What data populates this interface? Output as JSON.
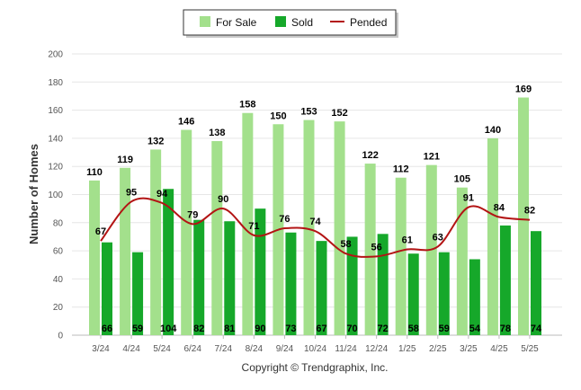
{
  "chart_data": {
    "type": "bar",
    "categories": [
      "3/24",
      "4/24",
      "5/24",
      "6/24",
      "7/24",
      "8/24",
      "9/24",
      "10/24",
      "11/24",
      "12/24",
      "1/25",
      "2/25",
      "3/25",
      "4/25",
      "5/25"
    ],
    "series": [
      {
        "name": "For Sale",
        "type": "bar",
        "color": "#a3e08c",
        "values": [
          110,
          119,
          132,
          146,
          138,
          158,
          150,
          153,
          152,
          122,
          112,
          121,
          105,
          140,
          169
        ]
      },
      {
        "name": "Sold",
        "type": "bar",
        "color": "#16a82a",
        "values": [
          66,
          59,
          104,
          82,
          81,
          90,
          73,
          67,
          70,
          72,
          58,
          59,
          54,
          78,
          74
        ]
      },
      {
        "name": "Pended",
        "type": "line",
        "color": "#b31414",
        "values": [
          67,
          95,
          94,
          79,
          90,
          71,
          76,
          74,
          58,
          56,
          61,
          63,
          91,
          84,
          82
        ]
      }
    ],
    "xlabel": "",
    "ylabel": "Number of Homes",
    "ylim": [
      0,
      200
    ],
    "yticks": [
      0,
      20,
      40,
      60,
      80,
      100,
      120,
      140,
      160,
      180,
      200
    ],
    "grid": true,
    "legend_position": "top-center"
  },
  "footer": {
    "copyright": "Copyright © Trendgraphix, Inc."
  }
}
